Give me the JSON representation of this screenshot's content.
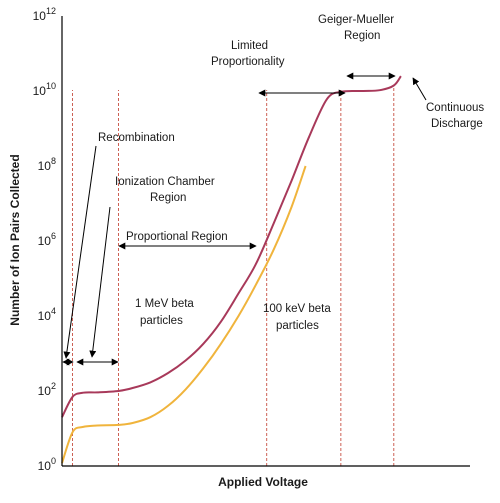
{
  "chart_data": {
    "type": "line",
    "xlabel": "Applied Voltage",
    "ylabel": "Number of Ion Pairs Collected",
    "y_scale": "log",
    "ylim": [
      1,
      1000000000000.0
    ],
    "y_ticks": [
      {
        "base": "10",
        "exp": "0"
      },
      {
        "base": "10",
        "exp": "2"
      },
      {
        "base": "10",
        "exp": "4"
      },
      {
        "base": "10",
        "exp": "6"
      },
      {
        "base": "10",
        "exp": "8"
      },
      {
        "base": "10",
        "exp": "10"
      },
      {
        "base": "10",
        "exp": "12"
      }
    ],
    "series": [
      {
        "name": "1 MeV beta particles",
        "color": "#a8395a",
        "points": [
          [
            0.0,
            20
          ],
          [
            0.03,
            70
          ],
          [
            0.06,
            90
          ],
          [
            0.1,
            92
          ],
          [
            0.16,
            100
          ],
          [
            0.2,
            120
          ],
          [
            0.25,
            170
          ],
          [
            0.3,
            300
          ],
          [
            0.35,
            650
          ],
          [
            0.4,
            1800
          ],
          [
            0.45,
            7000
          ],
          [
            0.5,
            40000
          ],
          [
            0.55,
            250000
          ],
          [
            0.6,
            3000000
          ],
          [
            0.65,
            40000000
          ],
          [
            0.7,
            600000000
          ],
          [
            0.75,
            6000000000
          ],
          [
            0.79,
            9500000000
          ],
          [
            0.85,
            10000000000
          ],
          [
            0.9,
            10500000000
          ],
          [
            0.94,
            14000000000
          ],
          [
            0.96,
            25000000000
          ]
        ]
      },
      {
        "name": "100 keV beta particles",
        "color": "#f0b43c",
        "points": [
          [
            0.0,
            1.2
          ],
          [
            0.03,
            8
          ],
          [
            0.06,
            11
          ],
          [
            0.1,
            12
          ],
          [
            0.16,
            12.5
          ],
          [
            0.2,
            14
          ],
          [
            0.25,
            20
          ],
          [
            0.3,
            40
          ],
          [
            0.35,
            110
          ],
          [
            0.4,
            400
          ],
          [
            0.45,
            1800
          ],
          [
            0.5,
            10000
          ],
          [
            0.55,
            70000
          ],
          [
            0.6,
            600000
          ],
          [
            0.65,
            8000000
          ],
          [
            0.69,
            100000000
          ]
        ]
      }
    ],
    "regions": [
      {
        "name": "Recombination",
        "from": 0.0,
        "to": 0.03
      },
      {
        "name": "Ionization Chamber Region",
        "from": 0.03,
        "to": 0.16
      },
      {
        "name": "Proportional Region",
        "from": 0.16,
        "to": 0.58
      },
      {
        "name": "Limited Proportionality",
        "from": 0.58,
        "to": 0.79
      },
      {
        "name": "Geiger-Mueller Region",
        "from": 0.79,
        "to": 0.94
      },
      {
        "name": "Continuous Discharge",
        "from": 0.94,
        "to": 1.0
      }
    ],
    "labels": {
      "recombination": "Recombination",
      "ionization_line1": "Ionization Chamber",
      "ionization_line2": "Region",
      "proportional": "Proportional Region",
      "limited_line1": "Limited",
      "limited_line2": "Proportionality",
      "geiger_line1": "Geiger-Mueller",
      "geiger_line2": "Region",
      "discharge_line1": "Continuous",
      "discharge_line2": "Discharge",
      "mev_line1": "1 MeV beta",
      "mev_line2": "particles",
      "kev_line1": "100 keV beta",
      "kev_line2": "particles"
    }
  }
}
